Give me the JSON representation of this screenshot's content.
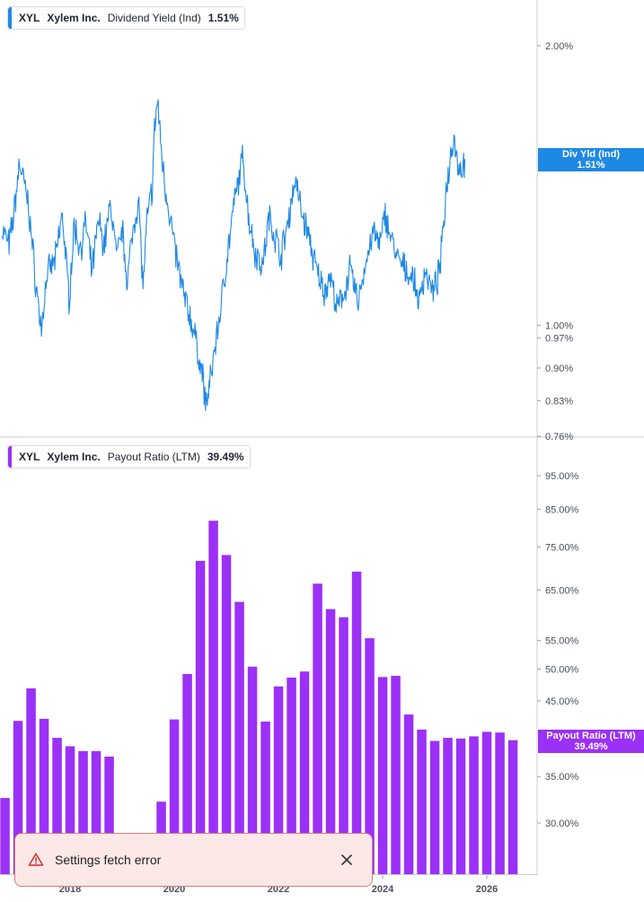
{
  "legend_top": {
    "symbol": "XYL",
    "name": "Xylem Inc.",
    "metric": "Dividend Yield (Ind)",
    "value": "1.51%",
    "color": "#1e88e5"
  },
  "legend_bottom": {
    "symbol": "XYL",
    "name": "Xylem Inc.",
    "metric": "Payout Ratio (LTM)",
    "value": "39.49%",
    "color": "#9b30f7"
  },
  "tag_top": {
    "line1": "Div Yld (Ind)",
    "line2": "1.51%"
  },
  "tag_bottom": {
    "line1": "Payout Ratio (LTM)",
    "line2": "39.49%"
  },
  "toast": {
    "message": "Settings fetch error",
    "icon": "warning-triangle-icon",
    "close_icon": "close-icon"
  },
  "chart_data": [
    {
      "type": "line",
      "scale": "log",
      "series": [
        {
          "name": "Dividend Yield (Ind)",
          "color": "#1e88e5"
        }
      ],
      "x_range": [
        2016.7,
        2026.65
      ],
      "ylim": [
        0.76,
        2.2
      ],
      "y_ticks": [
        "2.00%",
        "1.00%",
        "0.97%",
        "0.90%",
        "0.83%",
        "0.76%"
      ],
      "y_tick_values": [
        2.0,
        1.0,
        0.97,
        0.9,
        0.83,
        0.76
      ],
      "anchors": [
        [
          2016.7,
          1.27
        ],
        [
          2016.83,
          1.22
        ],
        [
          2016.93,
          1.33
        ],
        [
          2017.03,
          1.5
        ],
        [
          2017.2,
          1.35
        ],
        [
          2017.35,
          1.1
        ],
        [
          2017.45,
          0.99
        ],
        [
          2017.55,
          1.13
        ],
        [
          2017.72,
          1.18
        ],
        [
          2017.85,
          1.32
        ],
        [
          2017.98,
          1.07
        ],
        [
          2018.08,
          1.28
        ],
        [
          2018.2,
          1.21
        ],
        [
          2018.3,
          1.29
        ],
        [
          2018.42,
          1.14
        ],
        [
          2018.55,
          1.3
        ],
        [
          2018.65,
          1.22
        ],
        [
          2018.78,
          1.35
        ],
        [
          2018.9,
          1.18
        ],
        [
          2019.0,
          1.27
        ],
        [
          2019.1,
          1.12
        ],
        [
          2019.23,
          1.3
        ],
        [
          2019.32,
          1.36
        ],
        [
          2019.4,
          1.1
        ],
        [
          2019.48,
          1.3
        ],
        [
          2019.58,
          1.41
        ],
        [
          2019.62,
          1.62
        ],
        [
          2019.68,
          1.75
        ],
        [
          2019.75,
          1.55
        ],
        [
          2019.82,
          1.42
        ],
        [
          2019.92,
          1.31
        ],
        [
          2020.02,
          1.2
        ],
        [
          2020.15,
          1.1
        ],
        [
          2020.22,
          1.06
        ],
        [
          2020.35,
          1.0
        ],
        [
          2020.45,
          0.94
        ],
        [
          2020.55,
          0.88
        ],
        [
          2020.6,
          0.82
        ],
        [
          2020.68,
          0.86
        ],
        [
          2020.77,
          0.94
        ],
        [
          2020.87,
          1.02
        ],
        [
          2021.0,
          1.17
        ],
        [
          2021.15,
          1.35
        ],
        [
          2021.32,
          1.52
        ],
        [
          2021.42,
          1.32
        ],
        [
          2021.55,
          1.2
        ],
        [
          2021.7,
          1.16
        ],
        [
          2021.82,
          1.31
        ],
        [
          2021.95,
          1.24
        ],
        [
          2022.05,
          1.19
        ],
        [
          2022.18,
          1.29
        ],
        [
          2022.32,
          1.44
        ],
        [
          2022.45,
          1.32
        ],
        [
          2022.58,
          1.25
        ],
        [
          2022.72,
          1.15
        ],
        [
          2022.88,
          1.09
        ],
        [
          2023.0,
          1.13
        ],
        [
          2023.12,
          1.04
        ],
        [
          2023.25,
          1.08
        ],
        [
          2023.38,
          1.15
        ],
        [
          2023.52,
          1.06
        ],
        [
          2023.68,
          1.17
        ],
        [
          2023.82,
          1.26
        ],
        [
          2023.95,
          1.22
        ],
        [
          2024.05,
          1.32
        ],
        [
          2024.15,
          1.25
        ],
        [
          2024.28,
          1.18
        ],
        [
          2024.42,
          1.15
        ],
        [
          2024.57,
          1.13
        ],
        [
          2024.7,
          1.06
        ],
        [
          2024.82,
          1.15
        ],
        [
          2024.97,
          1.08
        ],
        [
          2025.1,
          1.15
        ],
        [
          2025.22,
          1.4
        ],
        [
          2025.32,
          1.55
        ],
        [
          2025.37,
          1.61
        ],
        [
          2025.43,
          1.5
        ],
        [
          2025.52,
          1.47
        ],
        [
          2025.58,
          1.51
        ]
      ]
    },
    {
      "type": "bar",
      "scale": "log",
      "series": [
        {
          "name": "Payout Ratio (LTM)",
          "color": "#9b30f7"
        }
      ],
      "x_ticks": [
        "2018",
        "2020",
        "2022",
        "2024",
        "2026"
      ],
      "x_tick_positions": [
        2018,
        2020,
        2022,
        2024,
        2026
      ],
      "ylim": [
        25.6,
        100
      ],
      "y_ticks": [
        "95.00%",
        "85.00%",
        "75.00%",
        "65.00%",
        "55.00%",
        "50.00%",
        "45.00%",
        "35.00%",
        "30.00%"
      ],
      "y_tick_values": [
        95,
        85,
        75,
        65,
        55,
        50,
        45,
        35,
        30
      ],
      "bar_x": [
        2016.75,
        2017.0,
        2017.25,
        2017.5,
        2017.75,
        2018.0,
        2018.25,
        2018.5,
        2018.75,
        2019.0,
        2019.25,
        2019.5,
        2019.75,
        2020.0,
        2020.25,
        2020.5,
        2020.75,
        2021.0,
        2021.25,
        2021.5,
        2021.75,
        2022.0,
        2022.25,
        2022.5,
        2022.75,
        2023.0,
        2023.25,
        2023.5,
        2023.75,
        2024.0,
        2024.25,
        2024.5,
        2024.75,
        2025.0,
        2025.25,
        2025.5,
        2025.75,
        2026.0,
        2026.25,
        2026.5
      ],
      "values": [
        32.6,
        42.1,
        46.9,
        42.4,
        39.8,
        38.7,
        38.1,
        38.1,
        37.4,
        null,
        null,
        null,
        32.2,
        42.3,
        49.2,
        71.6,
        81.8,
        73.0,
        62.5,
        50.4,
        42.0,
        47.2,
        48.6,
        49.6,
        66.4,
        61.0,
        59.4,
        69.1,
        55.4,
        48.7,
        48.9,
        43.0,
        40.9,
        39.4,
        39.8,
        39.7,
        40.0,
        40.6,
        40.5,
        39.49
      ]
    }
  ]
}
